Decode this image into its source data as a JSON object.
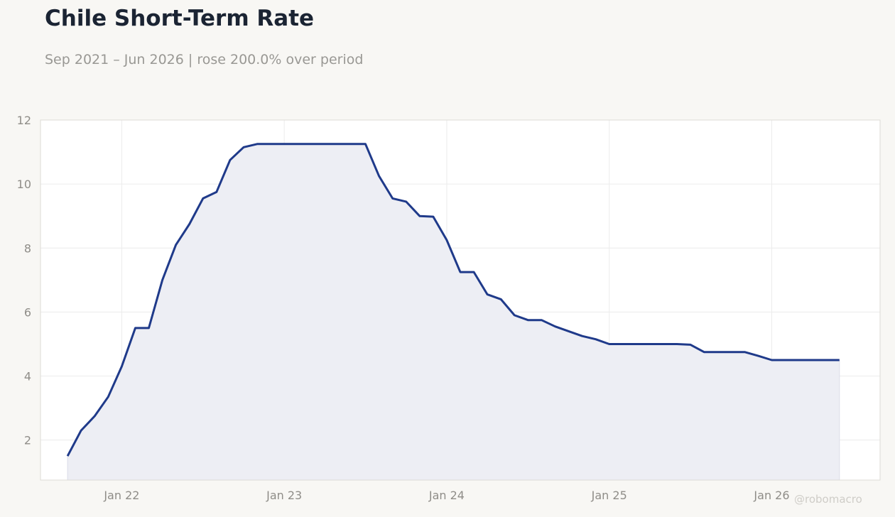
{
  "header": {
    "title": "Chile Short-Term Rate",
    "subtitle": "Sep 2021 – Jun 2026 | rose 200.0% over period"
  },
  "watermark": "@robomacro",
  "colors": {
    "background": "#f8f7f4",
    "plot_background": "#ffffff",
    "line": "#1f3a8a",
    "area_fill": "#edeef4",
    "grid": "#ececec",
    "axis_text": "#8f8d88",
    "title": "#1b2433"
  },
  "chart_data": {
    "type": "area",
    "title": "Chile Short-Term Rate",
    "subtitle": "Sep 2021 – Jun 2026 | rose 200.0% over period",
    "xlabel": "",
    "ylabel": "",
    "ylim": [
      0.75,
      12
    ],
    "yticks": [
      2,
      4,
      6,
      8,
      10,
      12
    ],
    "xticks": [
      {
        "label": "Jan 22",
        "date": "2022-01"
      },
      {
        "label": "Jan 23",
        "date": "2023-01"
      },
      {
        "label": "Jan 24",
        "date": "2024-01"
      },
      {
        "label": "Jan 25",
        "date": "2025-01"
      },
      {
        "label": "Jan 26",
        "date": "2026-01"
      }
    ],
    "xlim": [
      "2021-07",
      "2026-09"
    ],
    "grid": true,
    "legend": "none",
    "series": [
      {
        "x": [
          "2021-09",
          "2021-10",
          "2021-11",
          "2021-12",
          "2022-01",
          "2022-02",
          "2022-03",
          "2022-04",
          "2022-05",
          "2022-06",
          "2022-07",
          "2022-08",
          "2022-09",
          "2022-10",
          "2022-11",
          "2022-12",
          "2023-01",
          "2023-02",
          "2023-03",
          "2023-04",
          "2023-05",
          "2023-06",
          "2023-07",
          "2023-08",
          "2023-09",
          "2023-10",
          "2023-11",
          "2023-12",
          "2024-01",
          "2024-02",
          "2024-03",
          "2024-04",
          "2024-05",
          "2024-06",
          "2024-07",
          "2024-08",
          "2024-09",
          "2024-10",
          "2024-11",
          "2024-12",
          "2025-01",
          "2025-02",
          "2025-03",
          "2025-04",
          "2025-05",
          "2025-06",
          "2025-07",
          "2025-08",
          "2025-09",
          "2025-10",
          "2025-11",
          "2025-12",
          "2026-01",
          "2026-02",
          "2026-03",
          "2026-04",
          "2026-05",
          "2026-06"
        ],
        "y": [
          1.5,
          2.3,
          2.75,
          3.35,
          4.3,
          5.5,
          5.5,
          7.0,
          8.1,
          8.75,
          9.55,
          9.75,
          10.75,
          11.15,
          11.25,
          11.25,
          11.25,
          11.25,
          11.25,
          11.25,
          11.25,
          11.25,
          11.25,
          10.25,
          9.55,
          9.45,
          9.0,
          8.98,
          8.25,
          7.25,
          7.25,
          6.55,
          6.4,
          5.9,
          5.75,
          5.75,
          5.55,
          5.4,
          5.25,
          5.15,
          5.0,
          5.0,
          5.0,
          5.0,
          5.0,
          5.0,
          4.98,
          4.75,
          4.75,
          4.75,
          4.75,
          4.63,
          4.5,
          4.5,
          4.5,
          4.5,
          4.5,
          4.5
        ]
      }
    ]
  }
}
